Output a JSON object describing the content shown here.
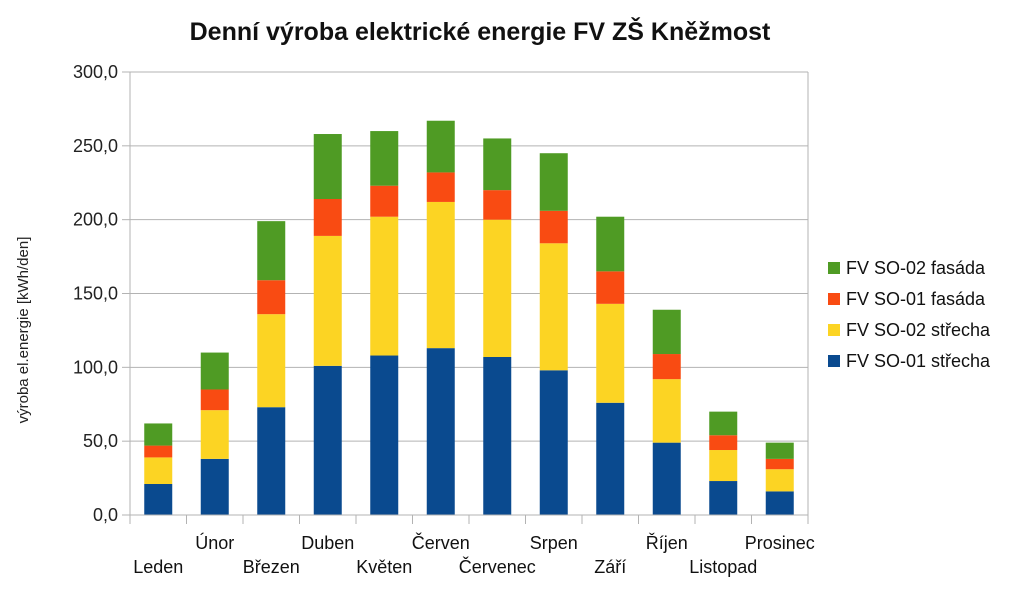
{
  "chart_data": {
    "type": "bar",
    "stacked": true,
    "title": "Denní výroba elektrické energie FV ZŠ Kněžmost",
    "xlabel": "",
    "ylabel": "výroba el.energie [kWh/den]",
    "ylim": [
      0,
      300
    ],
    "yticks": [
      "0,0",
      "50,0",
      "100,0",
      "150,0",
      "200,0",
      "250,0",
      "300,0"
    ],
    "grid": true,
    "legend_position": "right",
    "categories": [
      "Leden",
      "Únor",
      "Březen",
      "Duben",
      "Květen",
      "Červen",
      "Červenec",
      "Srpen",
      "Září",
      "Říjen",
      "Listopad",
      "Prosinec"
    ],
    "series": [
      {
        "name": "FV SO-01 střecha",
        "color": "#0a4a8f",
        "values": [
          21,
          38,
          73,
          101,
          108,
          113,
          107,
          98,
          76,
          49,
          23,
          16
        ]
      },
      {
        "name": "FV SO-02 střecha",
        "color": "#fcd423",
        "values": [
          18,
          33,
          63,
          88,
          94,
          99,
          93,
          86,
          67,
          43,
          21,
          15
        ]
      },
      {
        "name": "FV SO-01 fasáda",
        "color": "#f94b12",
        "values": [
          8,
          14,
          23,
          25,
          21,
          20,
          20,
          22,
          22,
          17,
          10,
          7
        ]
      },
      {
        "name": "FV SO-02 fasáda",
        "color": "#4f9b24",
        "values": [
          15,
          25,
          40,
          44,
          37,
          35,
          35,
          39,
          37,
          30,
          16,
          11
        ]
      }
    ]
  }
}
